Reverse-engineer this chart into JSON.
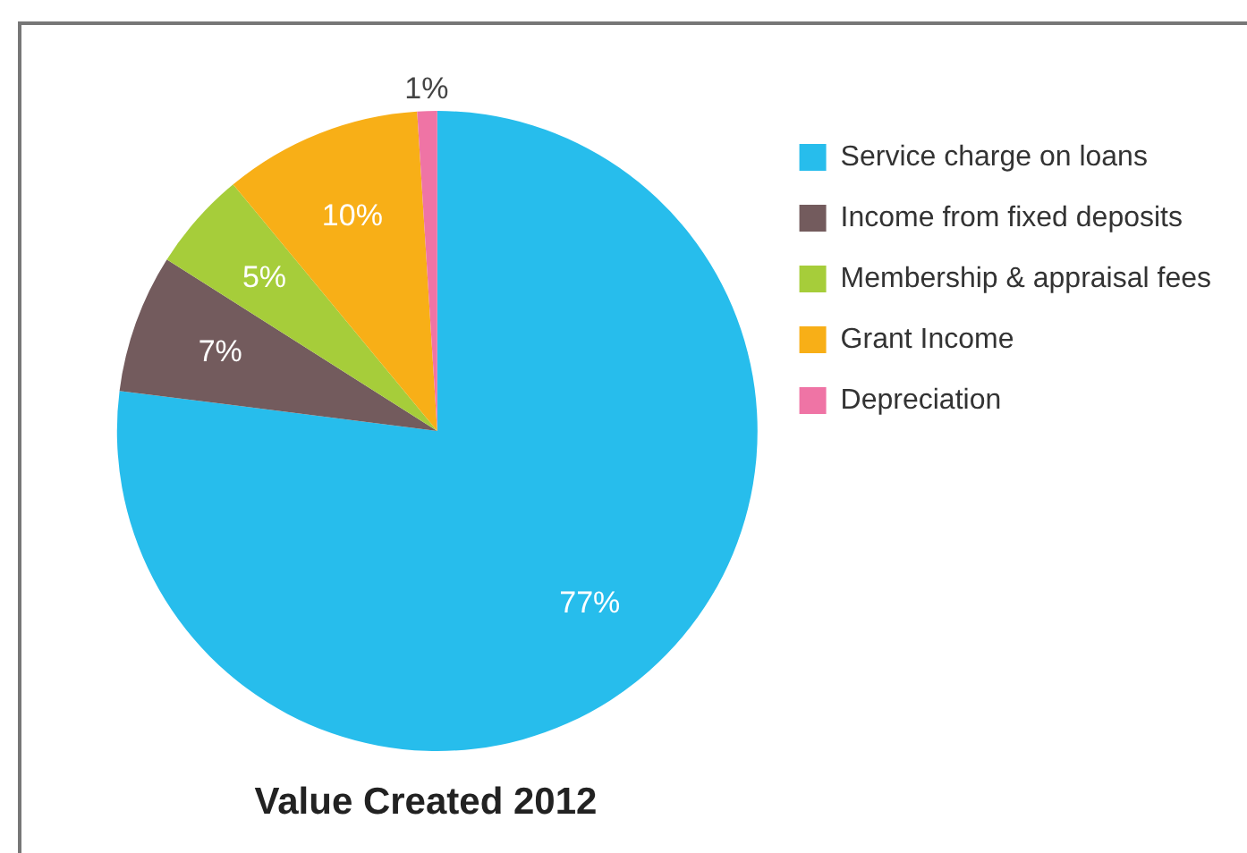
{
  "chart_data": {
    "type": "pie",
    "title": "Value Created 2012",
    "categories": [
      "Service charge on loans",
      "Income from fixed deposits",
      "Membership & appraisal fees",
      "Grant Income",
      "Depreciation"
    ],
    "values": [
      77,
      7,
      5,
      10,
      1
    ],
    "colors": [
      "#27bdec",
      "#735b5d",
      "#a6cd3a",
      "#f8af17",
      "#ef74a5"
    ],
    "value_labels": [
      "77%",
      "7%",
      "5%",
      "10%",
      "1%"
    ],
    "legend": "top right"
  }
}
